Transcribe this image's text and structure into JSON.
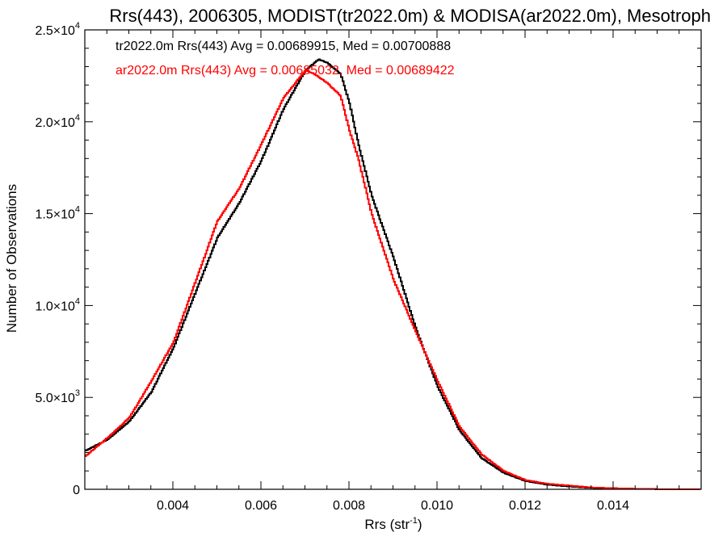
{
  "chart_data": {
    "type": "line",
    "title": "Rrs(443), 2006305, MODIST(tr2022.0m) & MODISA(ar2022.0m), Mesotroph",
    "xlabel": "Rrs (str",
    "xlabel_superscript": "-1",
    "xlabel_suffix": ")",
    "ylabel": "Number of Observations",
    "xlim": [
      0.002,
      0.016
    ],
    "ylim": [
      0,
      25000
    ],
    "x_ticks": [
      0.004,
      0.006,
      0.008,
      0.01,
      0.012,
      0.014
    ],
    "x_tick_labels": [
      "0.004",
      "0.006",
      "0.008",
      "0.010",
      "0.012",
      "0.014"
    ],
    "y_ticks": [
      0,
      5000,
      10000,
      15000,
      20000,
      25000
    ],
    "y_tick_labels": [
      {
        "mantissa": "0",
        "exp": ""
      },
      {
        "mantissa": "5.0×10",
        "exp": "3"
      },
      {
        "mantissa": "1.0×10",
        "exp": "4"
      },
      {
        "mantissa": "1.5×10",
        "exp": "4"
      },
      {
        "mantissa": "2.0×10",
        "exp": "4"
      },
      {
        "mantissa": "2.5×10",
        "exp": "4"
      }
    ],
    "grid": false,
    "legend_position": "top-left",
    "colors": {
      "tr": "#000000",
      "ar": "#ff0000"
    },
    "legend": [
      {
        "text": "tr2022.0m Rrs(443) Avg = 0.00689915, Med = 0.00700888",
        "color": "#000000"
      },
      {
        "text": "ar2022.0m Rrs(443) Avg = 0.00685032, Med = 0.00689422",
        "color": "#ff0000"
      }
    ],
    "series": [
      {
        "key": "tr",
        "color": "#000000",
        "points": [
          [
            0.002,
            2100
          ],
          [
            0.0025,
            2700
          ],
          [
            0.003,
            3700
          ],
          [
            0.0035,
            5300
          ],
          [
            0.004,
            7700
          ],
          [
            0.0045,
            10700
          ],
          [
            0.005,
            13700
          ],
          [
            0.0055,
            15600
          ],
          [
            0.006,
            17900
          ],
          [
            0.0065,
            20700
          ],
          [
            0.007,
            22800
          ],
          [
            0.0073,
            23400
          ],
          [
            0.0075,
            23200
          ],
          [
            0.0078,
            22600
          ],
          [
            0.008,
            21000
          ],
          [
            0.0082,
            18800
          ],
          [
            0.0085,
            16000
          ],
          [
            0.009,
            12600
          ],
          [
            0.0095,
            8800
          ],
          [
            0.01,
            5600
          ],
          [
            0.0105,
            3200
          ],
          [
            0.011,
            1700
          ],
          [
            0.0115,
            900
          ],
          [
            0.012,
            450
          ],
          [
            0.0125,
            250
          ],
          [
            0.013,
            150
          ],
          [
            0.0135,
            80
          ],
          [
            0.014,
            40
          ],
          [
            0.0145,
            20
          ],
          [
            0.015,
            10
          ],
          [
            0.0155,
            5
          ],
          [
            0.016,
            2
          ]
        ]
      },
      {
        "key": "ar",
        "color": "#ff0000",
        "points": [
          [
            0.002,
            1800
          ],
          [
            0.0025,
            2800
          ],
          [
            0.003,
            3900
          ],
          [
            0.0035,
            5900
          ],
          [
            0.004,
            8000
          ],
          [
            0.0045,
            11300
          ],
          [
            0.005,
            14600
          ],
          [
            0.0055,
            16400
          ],
          [
            0.006,
            18800
          ],
          [
            0.0065,
            21300
          ],
          [
            0.007,
            22800
          ],
          [
            0.0072,
            22600
          ],
          [
            0.0075,
            22100
          ],
          [
            0.0078,
            21400
          ],
          [
            0.008,
            19500
          ],
          [
            0.0082,
            18000
          ],
          [
            0.0085,
            15000
          ],
          [
            0.009,
            11400
          ],
          [
            0.0095,
            8600
          ],
          [
            0.01,
            5900
          ],
          [
            0.0105,
            3400
          ],
          [
            0.011,
            1900
          ],
          [
            0.0115,
            1000
          ],
          [
            0.012,
            500
          ],
          [
            0.0125,
            300
          ],
          [
            0.013,
            200
          ],
          [
            0.0135,
            100
          ],
          [
            0.014,
            60
          ],
          [
            0.0145,
            30
          ],
          [
            0.015,
            10
          ],
          [
            0.0155,
            5
          ],
          [
            0.016,
            2
          ]
        ]
      }
    ]
  }
}
